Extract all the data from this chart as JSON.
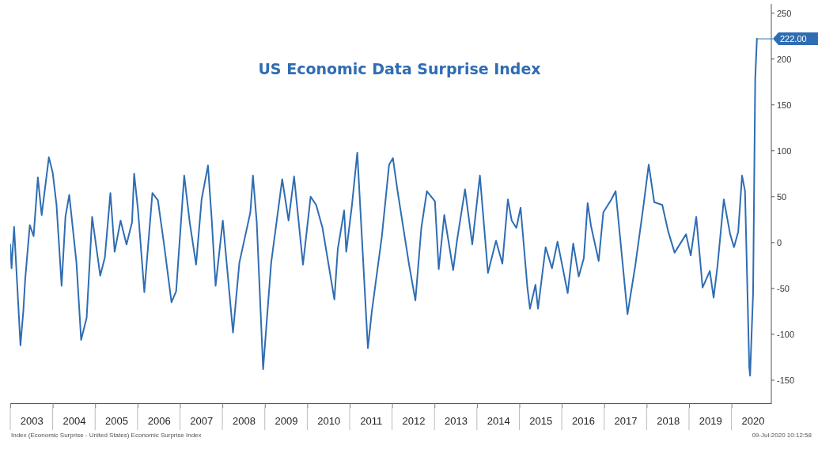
{
  "chart_data": {
    "type": "line",
    "title": "US Economic Data Surprise Index",
    "x": [
      2003.0,
      2003.03,
      2003.09,
      2003.24,
      2003.31,
      2003.35,
      2003.46,
      2003.55,
      2003.65,
      2003.74,
      2003.91,
      2004.0,
      2004.09,
      2004.21,
      2004.3,
      2004.39,
      2004.56,
      2004.67,
      2004.8,
      2004.93,
      2005.12,
      2005.23,
      2005.36,
      2005.46,
      2005.6,
      2005.74,
      2005.87,
      2005.92,
      2006.01,
      2006.16,
      2006.35,
      2006.48,
      2006.63,
      2006.8,
      2006.91,
      2007.1,
      2007.23,
      2007.38,
      2007.51,
      2007.66,
      2007.75,
      2007.84,
      2008.01,
      2008.25,
      2008.4,
      2008.66,
      2008.72,
      2008.81,
      2008.96,
      2009.15,
      2009.41,
      2009.56,
      2009.69,
      2009.9,
      2010.08,
      2010.21,
      2010.36,
      2010.64,
      2010.72,
      2010.87,
      2010.92,
      2011.05,
      2011.18,
      2011.43,
      2011.52,
      2011.76,
      2011.93,
      2012.02,
      2012.13,
      2012.4,
      2012.55,
      2012.69,
      2012.82,
      2013.01,
      2013.1,
      2013.23,
      2013.44,
      2013.53,
      2013.72,
      2013.89,
      2014.07,
      2014.26,
      2014.45,
      2014.6,
      2014.73,
      2014.82,
      2014.93,
      2015.03,
      2015.19,
      2015.25,
      2015.38,
      2015.44,
      2015.62,
      2015.77,
      2015.9,
      2016.14,
      2016.27,
      2016.4,
      2016.52,
      2016.61,
      2016.69,
      2016.87,
      2016.98,
      2017.17,
      2017.27,
      2017.55,
      2017.73,
      2017.92,
      2018.05,
      2018.18,
      2018.37,
      2018.51,
      2018.66,
      2018.93,
      2019.04,
      2019.17,
      2019.32,
      2019.49,
      2019.58,
      2019.67,
      2019.82,
      2019.97,
      2020.06,
      2020.16,
      2020.25,
      2020.32,
      2020.42,
      2020.44,
      2020.51,
      2020.56,
      2020.6
    ],
    "series": [
      {
        "color": "#2f6db3",
        "values": [
          -2,
          -28,
          17,
          -112,
          -73,
          -41,
          19,
          7,
          71,
          30,
          93,
          76,
          41,
          -47,
          28,
          52,
          -22,
          -106,
          -82,
          28,
          -36,
          -16,
          54,
          -10,
          24,
          -2,
          22,
          75,
          36,
          -54,
          54,
          46,
          -4,
          -65,
          -53,
          73,
          22,
          -24,
          47,
          84,
          24,
          -47,
          24,
          -98,
          -22,
          33,
          73,
          22,
          -138,
          -22,
          69,
          24,
          72,
          -24,
          50,
          41,
          16,
          -62,
          -7,
          35,
          -10,
          39,
          98,
          -115,
          -76,
          7,
          85,
          92,
          56,
          -24,
          -63,
          16,
          56,
          45,
          -29,
          30,
          -30,
          2,
          58,
          -2,
          73,
          -33,
          2,
          -23,
          47,
          24,
          16,
          38,
          -49,
          -72,
          -46,
          -72,
          -5,
          -28,
          1,
          -55,
          -1,
          -37,
          -17,
          43,
          18,
          -20,
          33,
          47,
          56,
          -78,
          -26,
          38,
          85,
          44,
          41,
          12,
          -11,
          9,
          -14,
          28,
          -49,
          -31,
          -60,
          -26,
          47,
          9,
          -5,
          12,
          73,
          56,
          -136,
          -145,
          -55,
          178,
          222
        ]
      }
    ],
    "xlim": [
      2003.0,
      2020.94
    ],
    "xticks": [
      {
        "value": 2003,
        "label": null
      },
      {
        "value": 2003.5,
        "label": "2003"
      },
      {
        "value": 2004,
        "label": null
      },
      {
        "value": 2004.5,
        "label": "2004"
      },
      {
        "value": 2005,
        "label": null
      },
      {
        "value": 2005.5,
        "label": "2005"
      },
      {
        "value": 2006,
        "label": null
      },
      {
        "value": 2006.5,
        "label": "2006"
      },
      {
        "value": 2007,
        "label": null
      },
      {
        "value": 2007.5,
        "label": "2007"
      },
      {
        "value": 2008,
        "label": null
      },
      {
        "value": 2008.5,
        "label": "2008"
      },
      {
        "value": 2009,
        "label": null
      },
      {
        "value": 2009.5,
        "label": "2009"
      },
      {
        "value": 2010,
        "label": null
      },
      {
        "value": 2010.5,
        "label": "2010"
      },
      {
        "value": 2011,
        "label": null
      },
      {
        "value": 2011.5,
        "label": "2011"
      },
      {
        "value": 2012,
        "label": null
      },
      {
        "value": 2012.5,
        "label": "2012"
      },
      {
        "value": 2013,
        "label": null
      },
      {
        "value": 2013.5,
        "label": "2013"
      },
      {
        "value": 2014,
        "label": null
      },
      {
        "value": 2014.5,
        "label": "2014"
      },
      {
        "value": 2015,
        "label": null
      },
      {
        "value": 2015.5,
        "label": "2015"
      },
      {
        "value": 2016,
        "label": null
      },
      {
        "value": 2016.5,
        "label": "2016"
      },
      {
        "value": 2017,
        "label": null
      },
      {
        "value": 2017.5,
        "label": "2017"
      },
      {
        "value": 2018,
        "label": null
      },
      {
        "value": 2018.5,
        "label": "2018"
      },
      {
        "value": 2019,
        "label": null
      },
      {
        "value": 2019.5,
        "label": "2019"
      },
      {
        "value": 2020,
        "label": null
      },
      {
        "value": 2020.5,
        "label": "2020"
      }
    ],
    "ylim": [
      -175,
      260
    ],
    "yticks": [
      -150,
      -100,
      -50,
      0,
      50,
      100,
      150,
      200,
      250
    ],
    "line_style": "solid",
    "annotations": [
      {
        "text": "222.00",
        "x": 2020.6,
        "y": 222
      },
      "Index (Economic Surprise - United States) Economic Surprise Index",
      "09-Jul-2020 10:12:58"
    ]
  }
}
